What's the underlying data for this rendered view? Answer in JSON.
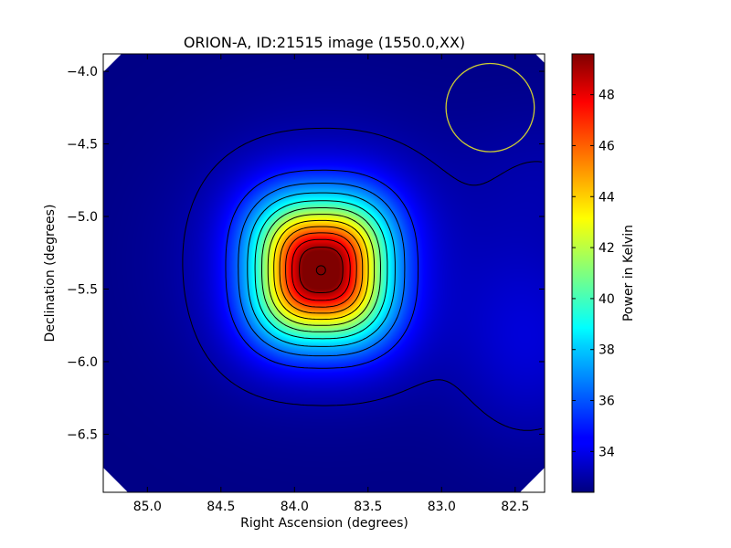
{
  "chart_data": {
    "type": "heatmap",
    "title": "ORION-A, ID:21515 image (1550.0,XX)",
    "xlabel": "Right Ascension (degrees)",
    "ylabel": "Declination (degrees)",
    "xlim": [
      85.3,
      82.3
    ],
    "ylim": [
      -6.9,
      -3.88
    ],
    "x_ticks": [
      85.0,
      84.5,
      84.0,
      83.5,
      83.0,
      82.5
    ],
    "x_tick_labels": [
      "85.0",
      "84.5",
      "84.0",
      "83.5",
      "83.0",
      "82.5"
    ],
    "y_ticks": [
      -4.0,
      -4.5,
      -5.0,
      -5.5,
      -6.0,
      -6.5
    ],
    "y_tick_labels": [
      "−4.0",
      "−4.5",
      "−5.0",
      "−5.5",
      "−6.0",
      "−6.5"
    ],
    "colorbar": {
      "label": "Power in Kelvin",
      "range": [
        32.4,
        49.6
      ],
      "ticks": [
        34,
        36,
        38,
        40,
        42,
        44,
        46,
        48
      ],
      "tick_labels": [
        "34",
        "36",
        "38",
        "40",
        "42",
        "44",
        "46",
        "48"
      ],
      "colormap": "jet"
    },
    "source_peak": {
      "ra": 83.82,
      "dec": -5.37,
      "value": 49.6
    },
    "background_level": 32.5,
    "secondary_enhancement": {
      "ra": 82.4,
      "dec": -5.85,
      "value": 33.8
    },
    "beam_circle": {
      "ra": 82.67,
      "dec": -4.25,
      "radius_deg": 0.3,
      "color": "#cccc33"
    },
    "marker": {
      "ra": 83.82,
      "dec": -5.37
    },
    "contours": "black lines at successive power levels around the source",
    "grid": false
  }
}
